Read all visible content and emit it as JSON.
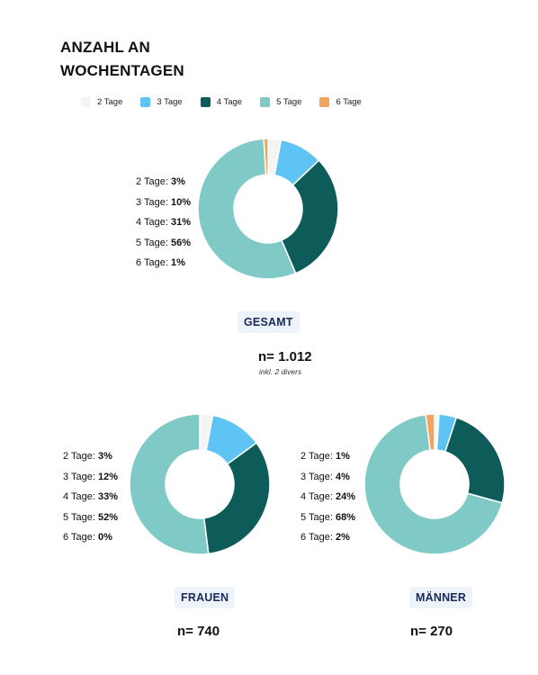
{
  "title_line1": "ANZAHL AN",
  "title_line2": "WOCHENTAGEN",
  "legend": [
    {
      "label": "2 Tage",
      "color": "#f4f4f4"
    },
    {
      "label": "3 Tage",
      "color": "#5ec4f4"
    },
    {
      "label": "4 Tage",
      "color": "#0d5c5a"
    },
    {
      "label": "5 Tage",
      "color": "#7fcac6"
    },
    {
      "label": "6 Tage",
      "color": "#f2a35e"
    }
  ],
  "chart_data": [
    {
      "type": "pie",
      "title": "GESAMT",
      "n": "n= 1.012",
      "note": "inkl. 2 divers",
      "categories": [
        "2 Tage",
        "3 Tage",
        "4 Tage",
        "5 Tage",
        "6 Tage"
      ],
      "values": [
        3,
        10,
        31,
        56,
        1
      ],
      "value_labels": [
        "3%",
        "10%",
        "31%",
        "56%",
        "1%"
      ]
    },
    {
      "type": "pie",
      "title": "FRAUEN",
      "n": "n= 740",
      "categories": [
        "2 Tage",
        "3 Tage",
        "4 Tage",
        "5 Tage",
        "6 Tage"
      ],
      "values": [
        3,
        12,
        33,
        52,
        0
      ],
      "value_labels": [
        "3%",
        "12%",
        "33%",
        "52%",
        "0%"
      ]
    },
    {
      "type": "pie",
      "title": "MÄNNER",
      "n": "n= 270",
      "categories": [
        "2 Tage",
        "3 Tage",
        "4 Tage",
        "5 Tage",
        "6 Tage"
      ],
      "values": [
        1,
        4,
        24,
        68,
        2
      ],
      "value_labels": [
        "1%",
        "4%",
        "24%",
        "68%",
        "2%"
      ]
    }
  ]
}
